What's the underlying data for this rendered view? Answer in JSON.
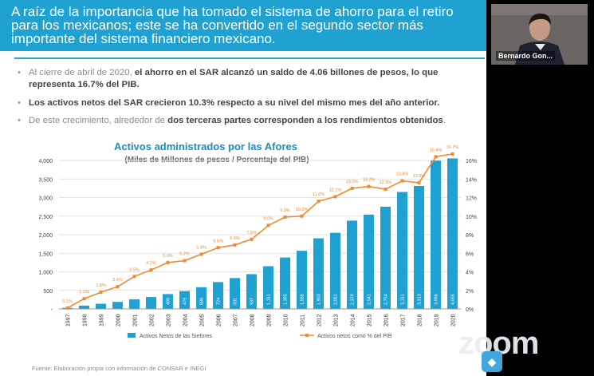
{
  "slide": {
    "title": "A raíz de la importancia que ha tomado el sistema de ahorro para el retiro\npara los mexicanos; este se ha convertido en el segundo sector más\nimportante del sistema financiero mexicano.",
    "bullets": [
      {
        "pre": "Al cierre de abril de 2020, ",
        "bold": "el ahorro en el SAR alcanzó un saldo de 4.06 billones de pesos, lo que representa 16.7% del PIB.",
        "post": ""
      },
      {
        "pre": "",
        "bold": "Los activos netos del SAR crecieron 10.3% respecto a su nivel del mismo mes del año anterior.",
        "post": ""
      },
      {
        "pre": "De este crecimiento, alrededor de ",
        "bold": "dos terceras partes corresponden a los rendimientos obtenidos",
        "post": "."
      }
    ],
    "source": "Fuente: Elaboración propia con información de CONSAR e INEGI"
  },
  "chart_data": {
    "type": "bar",
    "title": "Activos administrados por las Afores",
    "subtitle": "(Miles de Millones de pesos / Porcentaje del PIB)",
    "categories": [
      "1997",
      "1998",
      "1999",
      "2000",
      "2001",
      "2002",
      "2003",
      "2004",
      "2005",
      "2006",
      "2007",
      "2008",
      "2009",
      "2010",
      "2011",
      "2012",
      "2013",
      "2014",
      "2015",
      "2016",
      "2017",
      "2018",
      "2019",
      "2020"
    ],
    "series": [
      {
        "name": "Activos Netos de las Siefores",
        "kind": "bar",
        "axis": "left",
        "color": "#1fa1d1",
        "values": [
          30,
          90,
          140,
          190,
          260,
          320,
          400,
          479,
          586,
          724,
          831,
          937,
          1151,
          1385,
          1566,
          1903,
          2051,
          2379,
          2541,
          2754,
          3151,
          3313,
          3996,
          4055
        ],
        "labels": [
          "",
          "",
          "",
          "",
          "",
          "",
          "400",
          "479",
          "586",
          "724",
          "831",
          "937",
          "1,151",
          "1,385",
          "1,566",
          "1,903",
          "2,051",
          "2,379",
          "2,541",
          "2,754",
          "3,151",
          "3,313",
          "3,996",
          "4,055"
        ]
      },
      {
        "name": "Activos netos como % del PIB",
        "kind": "line",
        "axis": "right",
        "color": "#ef8a2e",
        "values": [
          0.1,
          1.1,
          1.8,
          2.4,
          3.5,
          4.2,
          5.0,
          5.2,
          5.9,
          6.6,
          6.9,
          7.5,
          9.0,
          9.9,
          10.0,
          11.6,
          12.1,
          13.0,
          13.2,
          12.9,
          13.8,
          13.6,
          16.4,
          16.7
        ],
        "labels": [
          "0.1%",
          "1.1%",
          "1.8%",
          "2.4%",
          "3.5%",
          "4.2%",
          "5.0%",
          "5.2%",
          "5.9%",
          "6.6%",
          "6.9%",
          "7.5%",
          "9.0%",
          "9.9%",
          "10.0%",
          "11.6%",
          "12.1%",
          "13.0%",
          "13.2%",
          "12.9%",
          "13.8%",
          "13.6%",
          "16.4%",
          "16.7%"
        ]
      }
    ],
    "y_left": {
      "min": 0,
      "max": 4000,
      "ticks": [
        0,
        500,
        1000,
        1500,
        2000,
        2500,
        3000,
        3500,
        4000
      ],
      "tick_labels": [
        "-",
        "500",
        "1,000",
        "1,500",
        "2,000",
        "2,500",
        "3,000",
        "3,500",
        "4,000"
      ]
    },
    "y_right": {
      "min": 0,
      "max": 16,
      "ticks": [
        0,
        2,
        4,
        6,
        8,
        10,
        12,
        14,
        16
      ],
      "tick_labels": [
        "0%",
        "2%",
        "4%",
        "6%",
        "8%",
        "10%",
        "12%",
        "14%",
        "16%"
      ]
    },
    "legend_position": "bottom"
  },
  "video": {
    "participant_name": "Bernardo Gon...",
    "colors": {
      "tile_bg": "#6a6664",
      "suit": "#1d2330",
      "skin": "#c59a82"
    }
  },
  "app": {
    "brand": "zoom",
    "colors": {
      "accent": "#1fa1d1",
      "line": "#ef8a2e",
      "background": "#000000"
    }
  }
}
